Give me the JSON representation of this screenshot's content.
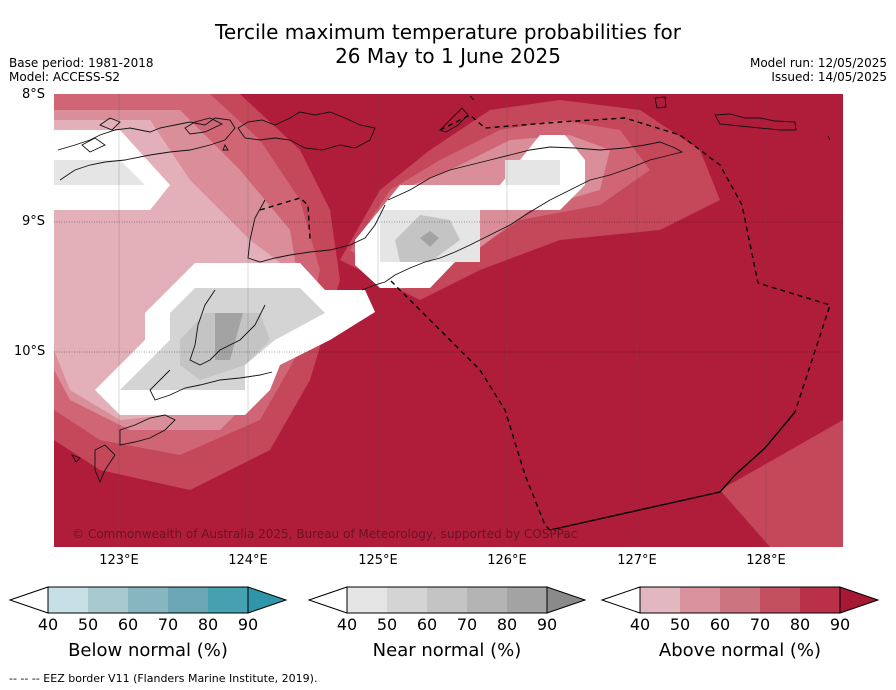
{
  "title_line1": "Tercile maximum temperature probabilities for",
  "title_line2": "26 May to 1 June 2025",
  "base_period": "Base period: 1981-2018",
  "model": "Model: ACCESS-S2",
  "model_run": "Model run: 12/05/2025",
  "issued": "Issued: 14/05/2025",
  "latitude_labels": [
    "8°S",
    "9°S",
    "10°S"
  ],
  "longitude_labels": [
    "123°E",
    "124°E",
    "125°E",
    "126°E",
    "127°E",
    "128°E"
  ],
  "copyright": "© Commonwealth of Australia 2025, Bureau of Meteorology, supported by COSPPac",
  "colorbars": [
    {
      "title": "Below normal (%)",
      "ticks": [
        "40",
        "50",
        "60",
        "70",
        "80",
        "90"
      ],
      "colors": [
        "#ffffff",
        "#c6e0e6",
        "#a7c9cf",
        "#87b6c0",
        "#6aa6b3",
        "#45a0b0",
        "#2e96a8"
      ]
    },
    {
      "title": "Near normal (%)",
      "ticks": [
        "40",
        "50",
        "60",
        "70",
        "80",
        "90"
      ],
      "colors": [
        "#ffffff",
        "#e5e5e5",
        "#d4d4d4",
        "#c4c4c4",
        "#b4b4b4",
        "#a3a3a3",
        "#8a8a8a"
      ]
    },
    {
      "title": "Above normal (%)",
      "ticks": [
        "40",
        "50",
        "60",
        "70",
        "80",
        "90"
      ],
      "colors": [
        "#ffffff",
        "#e3b7c0",
        "#d9929d",
        "#cc7480",
        "#c3505f",
        "#b93048",
        "#a61833"
      ]
    }
  ],
  "footer": "-- -- -- EEZ border V11 (Flanders Marine Institute, 2019)."
}
